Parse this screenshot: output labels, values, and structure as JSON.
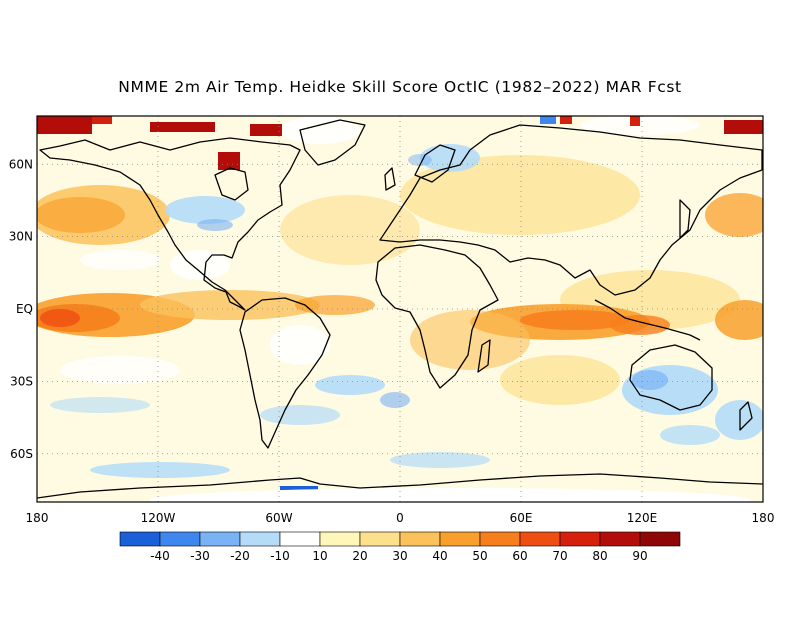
{
  "title": "NMME 2m Air Temp. Heidke Skill Score OctIC (1982–2022) MAR Fcst",
  "map": {
    "lat_labels": [
      "60N",
      "30N",
      "EQ",
      "30S",
      "60S"
    ],
    "lat_values": [
      60,
      30,
      0,
      -30,
      -60
    ],
    "lon_labels": [
      "180",
      "120W",
      "60W",
      "0",
      "60E",
      "120E",
      "180"
    ],
    "lon_values": [
      -180,
      -120,
      -60,
      0,
      60,
      120,
      180
    ],
    "lat_range": [
      -80,
      80
    ],
    "lon_range": [
      -180,
      180
    ]
  },
  "colorbar": {
    "labels": [
      "-40",
      "-30",
      "-20",
      "-10",
      "10",
      "20",
      "30",
      "40",
      "50",
      "60",
      "70",
      "80",
      "90"
    ],
    "colors": [
      "#1b5fd9",
      "#3f86ee",
      "#79b3f5",
      "#b4dcf8",
      "#ffffff",
      "#fff6b9",
      "#fde08c",
      "#fbc25c",
      "#f9a02c",
      "#f67e1c",
      "#ee4e12",
      "#d4200d",
      "#b30d0a",
      "#8f0606"
    ]
  }
}
